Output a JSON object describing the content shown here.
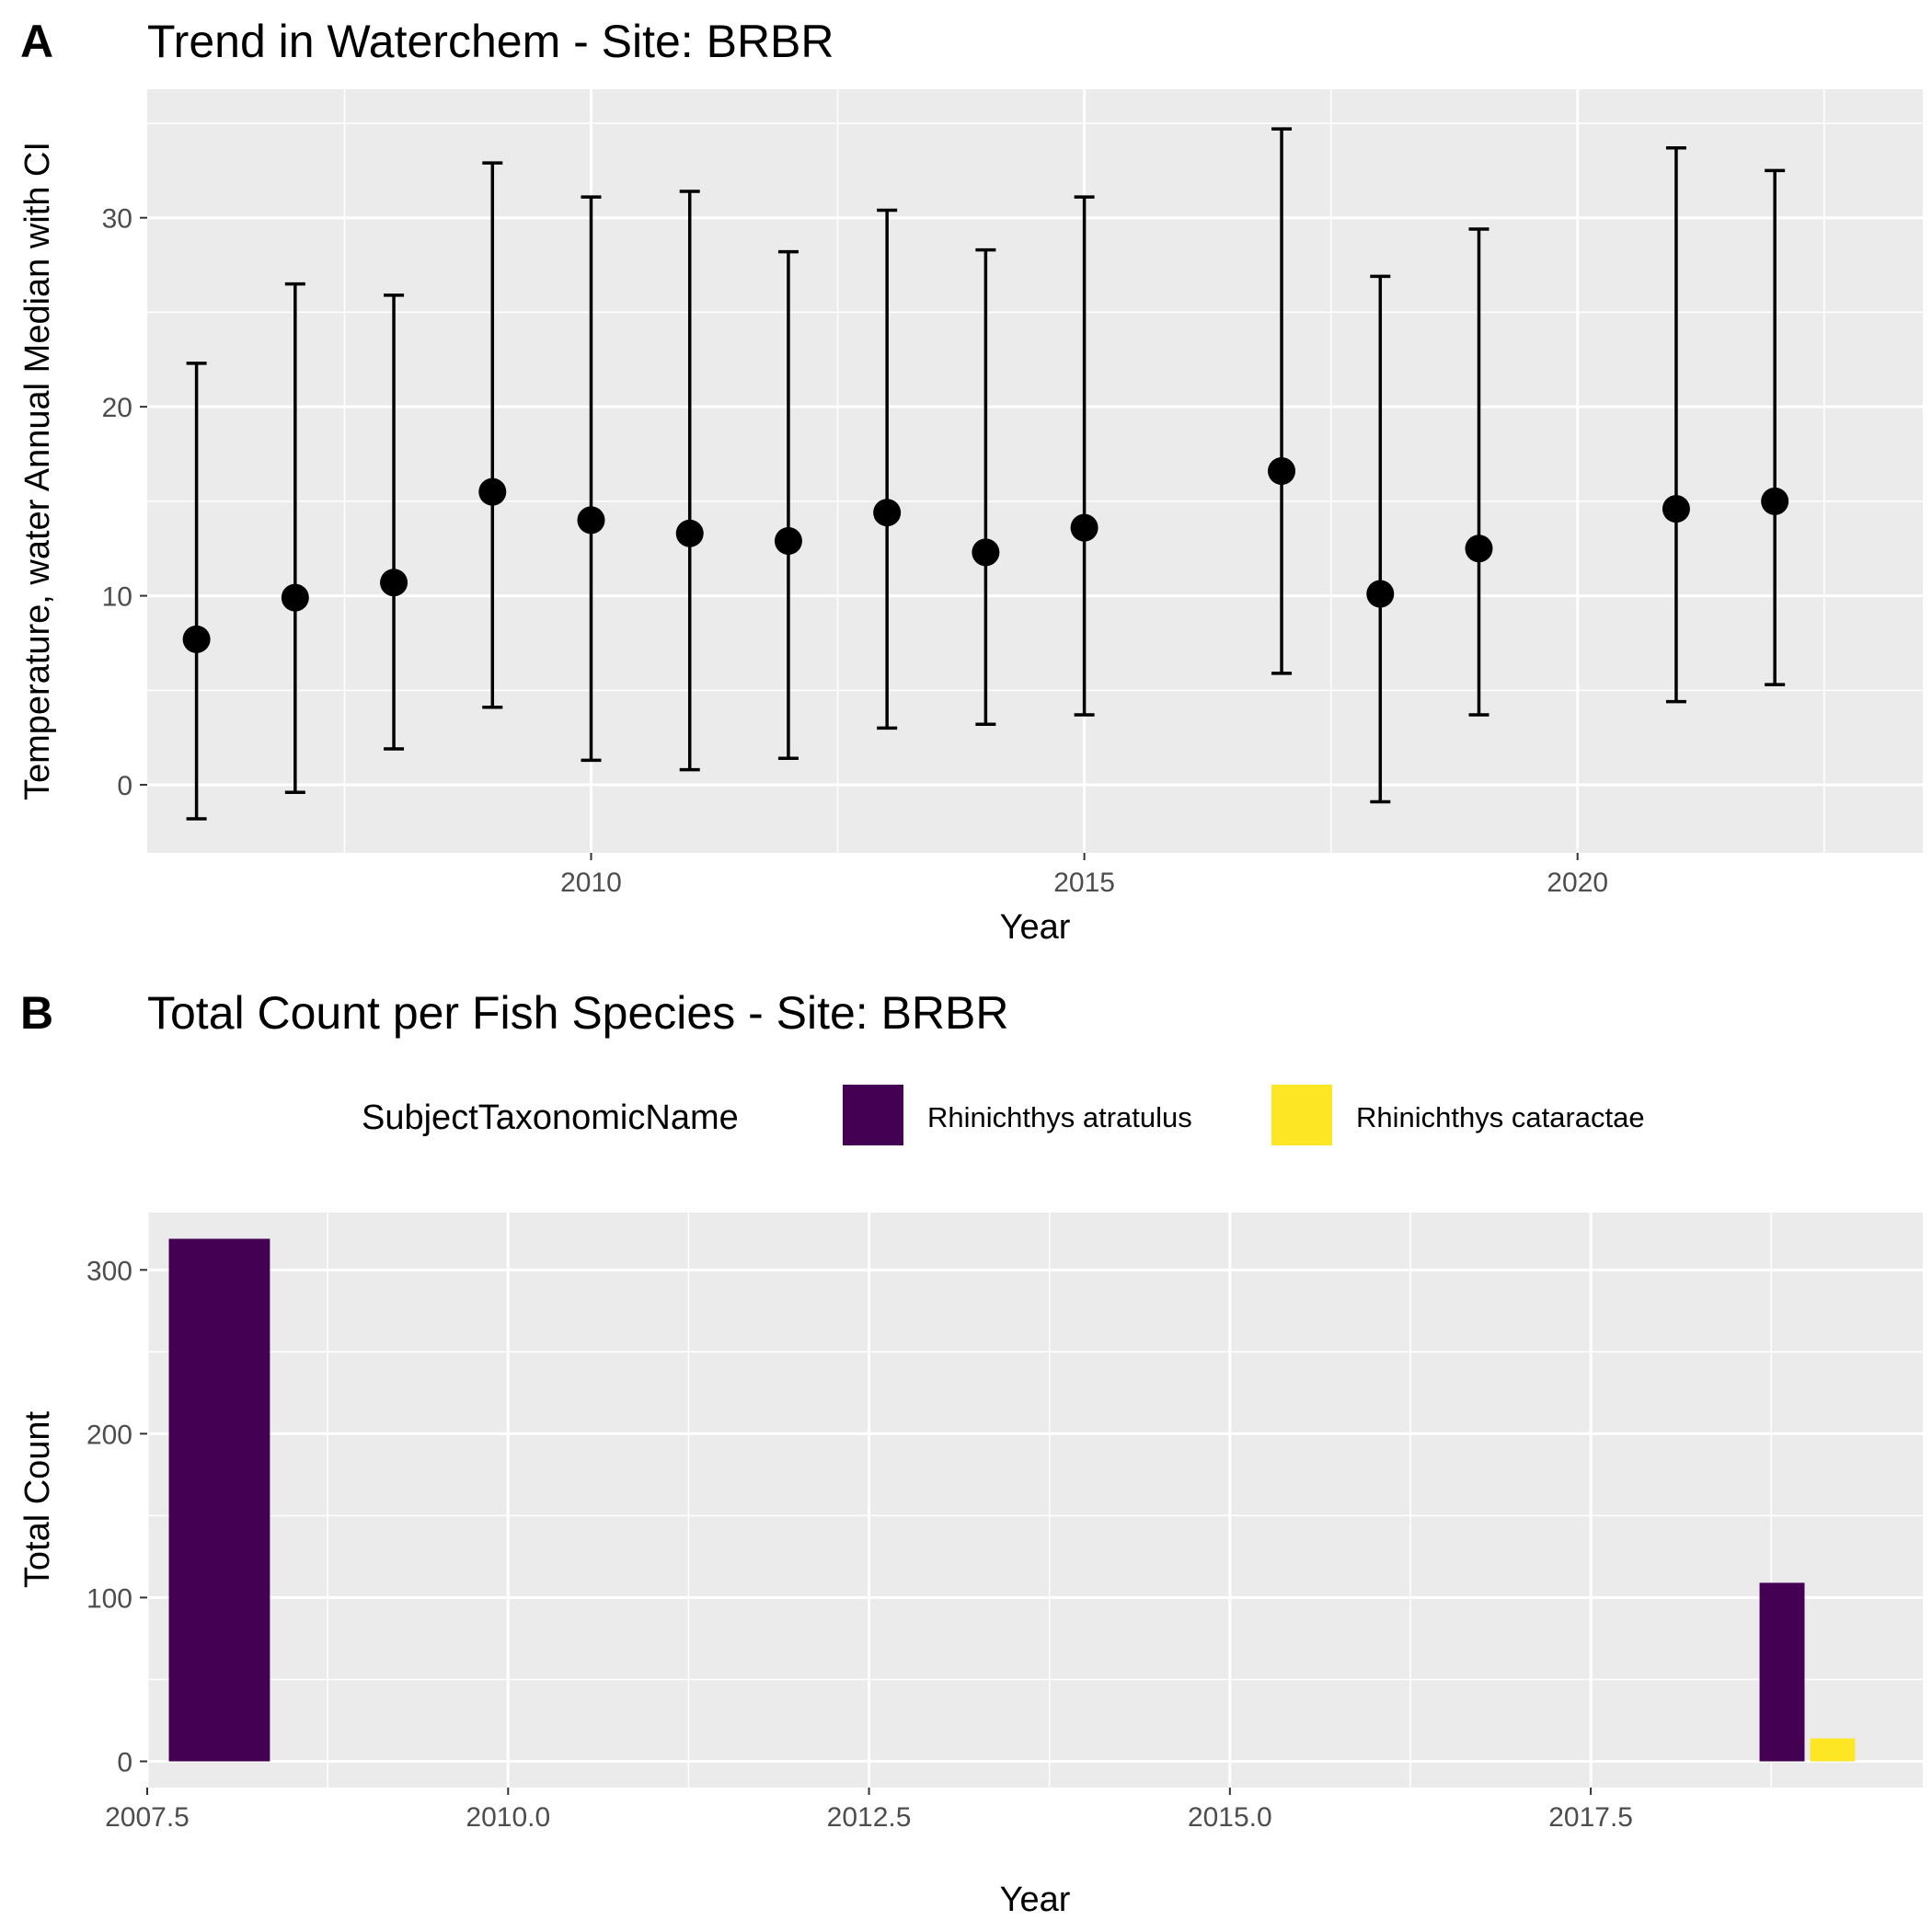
{
  "colors": {
    "panel_bg": "#ebebeb",
    "grid": "#ffffff",
    "tick_text": "#4d4d4d",
    "point": "#000000",
    "atratulus": "#440154",
    "cataractae": "#fde725"
  },
  "panel_a": {
    "letter": "A",
    "title": "Trend in Waterchem - Site: BRBR",
    "xlabel": "Year",
    "ylabel": "Temperature, water Annual Median with CI",
    "xticks": [
      "2010",
      "2015",
      "2020"
    ],
    "yticks": [
      "0",
      "10",
      "20",
      "30"
    ]
  },
  "panel_b": {
    "letter": "B",
    "title": "Total Count per Fish Species - Site: BRBR",
    "xlabel": "Year",
    "ylabel": "Total Count",
    "xticks": [
      "2007.5",
      "2010.0",
      "2012.5",
      "2015.0",
      "2017.5"
    ],
    "yticks": [
      "0",
      "100",
      "200",
      "300"
    ],
    "legend": {
      "title": "SubjectTaxonomicName",
      "items": [
        "Rhinichthys atratulus",
        "Rhinichthys cataractae"
      ]
    }
  },
  "chart_data": [
    {
      "type": "scatter",
      "title": "Trend in Waterchem - Site: BRBR",
      "xlabel": "Year",
      "ylabel": "Temperature, water Annual Median with CI",
      "xlim": [
        2005.5,
        2023.5
      ],
      "ylim": [
        -3.6,
        36.8
      ],
      "grid": true,
      "x": [
        2006,
        2007,
        2008,
        2009,
        2010,
        2011,
        2012,
        2013,
        2014,
        2015,
        2017,
        2018,
        2019,
        2021,
        2022
      ],
      "y": [
        7.7,
        9.9,
        10.7,
        15.5,
        14.0,
        13.3,
        12.9,
        14.4,
        12.3,
        13.6,
        16.6,
        10.1,
        12.5,
        14.6,
        15.0
      ],
      "lower": [
        -1.8,
        -0.4,
        1.9,
        4.1,
        1.3,
        0.8,
        1.4,
        3.0,
        3.2,
        3.7,
        5.9,
        -0.9,
        3.7,
        4.4,
        5.3
      ],
      "upper": [
        22.3,
        26.5,
        25.9,
        32.9,
        31.1,
        31.4,
        28.2,
        30.4,
        28.3,
        31.1,
        34.7,
        26.9,
        29.4,
        33.7,
        32.5
      ]
    },
    {
      "type": "bar",
      "title": "Total Count per Fish Species - Site: BRBR",
      "xlabel": "Year",
      "ylabel": "Total Count",
      "xlim": [
        2007.5,
        2019.8
      ],
      "ylim": [
        -16,
        335
      ],
      "grid": true,
      "legend": "top",
      "series": [
        {
          "name": "Rhinichthys atratulus",
          "x": [
            2008,
            2019
          ],
          "values": [
            319,
            109
          ]
        },
        {
          "name": "Rhinichthys cataractae",
          "x": [
            2019
          ],
          "values": [
            14
          ]
        }
      ]
    }
  ]
}
